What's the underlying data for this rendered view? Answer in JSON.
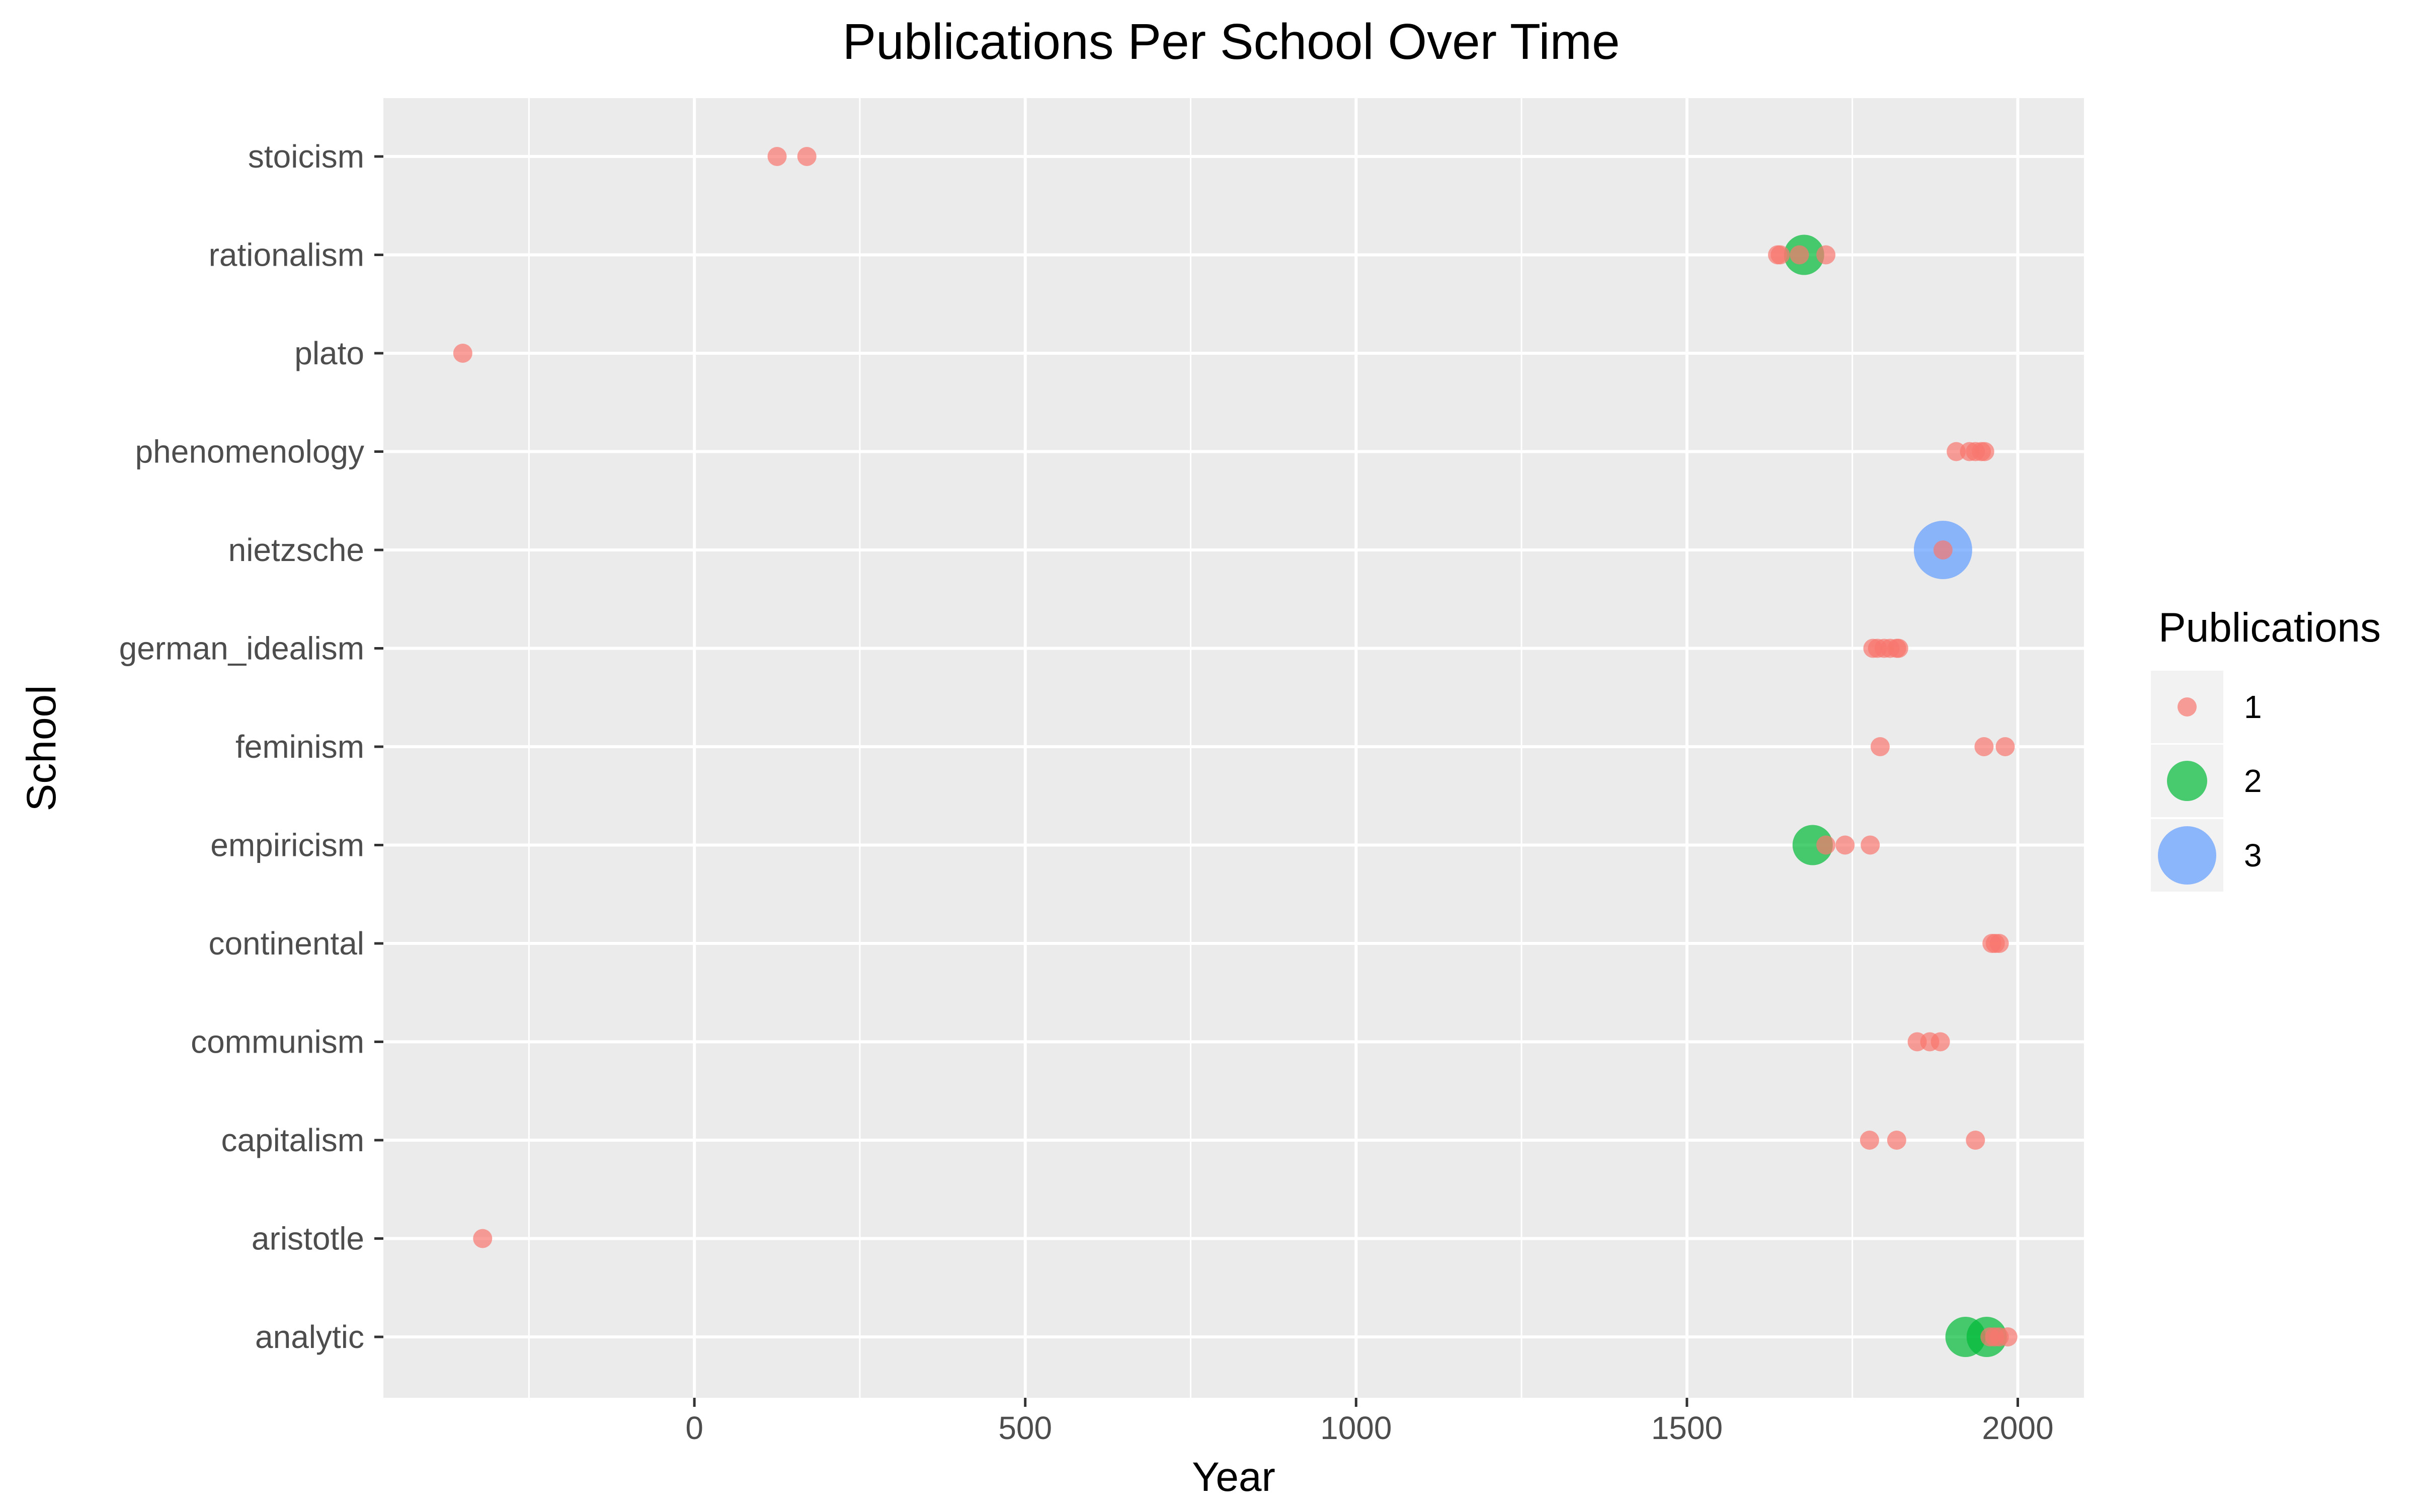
{
  "chart_data": {
    "type": "scatter",
    "title": "Publications Per School Over Time",
    "xlabel": "Year",
    "ylabel": "School",
    "xlim": [
      -470,
      2100
    ],
    "x_ticks": [
      0,
      500,
      1000,
      1500,
      2000
    ],
    "x_minor": [
      -250,
      250,
      750,
      1250,
      1750
    ],
    "categories": [
      "analytic",
      "aristotle",
      "capitalism",
      "communism",
      "continental",
      "empiricism",
      "feminism",
      "german_idealism",
      "nietzsche",
      "phenomenology",
      "plato",
      "rationalism",
      "stoicism"
    ],
    "grid": true,
    "legend": {
      "title": "Publications",
      "position": "right",
      "entries": [
        {
          "label": "1",
          "value": 1,
          "color": "#F8766D"
        },
        {
          "label": "2",
          "value": 2,
          "color": "#00BA38"
        },
        {
          "label": "3",
          "value": 3,
          "color": "#619CFF"
        }
      ]
    },
    "points": [
      {
        "school": "stoicism",
        "year": 125,
        "count": 1
      },
      {
        "school": "stoicism",
        "year": 170,
        "count": 1
      },
      {
        "school": "rationalism",
        "year": 1637,
        "count": 1
      },
      {
        "school": "rationalism",
        "year": 1641,
        "count": 1
      },
      {
        "school": "rationalism",
        "year": 1670,
        "count": 1
      },
      {
        "school": "rationalism",
        "year": 1677,
        "count": 2
      },
      {
        "school": "rationalism",
        "year": 1710,
        "count": 1
      },
      {
        "school": "plato",
        "year": -350,
        "count": 1
      },
      {
        "school": "phenomenology",
        "year": 1907,
        "count": 1
      },
      {
        "school": "phenomenology",
        "year": 1927,
        "count": 1
      },
      {
        "school": "phenomenology",
        "year": 1936,
        "count": 1
      },
      {
        "school": "phenomenology",
        "year": 1945,
        "count": 1
      },
      {
        "school": "phenomenology",
        "year": 1950,
        "count": 1
      },
      {
        "school": "nietzsche",
        "year": 1887,
        "count": 3
      },
      {
        "school": "nietzsche",
        "year": 1887,
        "count": 1
      },
      {
        "school": "german_idealism",
        "year": 1781,
        "count": 1
      },
      {
        "school": "german_idealism",
        "year": 1788,
        "count": 1
      },
      {
        "school": "german_idealism",
        "year": 1798,
        "count": 1
      },
      {
        "school": "german_idealism",
        "year": 1807,
        "count": 1
      },
      {
        "school": "german_idealism",
        "year": 1817,
        "count": 1
      },
      {
        "school": "german_idealism",
        "year": 1820,
        "count": 1
      },
      {
        "school": "feminism",
        "year": 1792,
        "count": 1
      },
      {
        "school": "feminism",
        "year": 1949,
        "count": 1
      },
      {
        "school": "feminism",
        "year": 1981,
        "count": 1
      },
      {
        "school": "empiricism",
        "year": 1690,
        "count": 2
      },
      {
        "school": "empiricism",
        "year": 1710,
        "count": 1
      },
      {
        "school": "empiricism",
        "year": 1739,
        "count": 1
      },
      {
        "school": "empiricism",
        "year": 1777,
        "count": 1
      },
      {
        "school": "continental",
        "year": 1961,
        "count": 1
      },
      {
        "school": "continental",
        "year": 1966,
        "count": 1
      },
      {
        "school": "continental",
        "year": 1972,
        "count": 1
      },
      {
        "school": "communism",
        "year": 1848,
        "count": 1
      },
      {
        "school": "communism",
        "year": 1867,
        "count": 1
      },
      {
        "school": "communism",
        "year": 1883,
        "count": 1
      },
      {
        "school": "capitalism",
        "year": 1776,
        "count": 1
      },
      {
        "school": "capitalism",
        "year": 1817,
        "count": 1
      },
      {
        "school": "capitalism",
        "year": 1936,
        "count": 1
      },
      {
        "school": "aristotle",
        "year": -320,
        "count": 1
      },
      {
        "school": "analytic",
        "year": 1921,
        "count": 2
      },
      {
        "school": "analytic",
        "year": 1953,
        "count": 2
      },
      {
        "school": "analytic",
        "year": 1958,
        "count": 1
      },
      {
        "school": "analytic",
        "year": 1965,
        "count": 1
      },
      {
        "school": "analytic",
        "year": 1972,
        "count": 1
      },
      {
        "school": "analytic",
        "year": 1985,
        "count": 1
      }
    ]
  }
}
